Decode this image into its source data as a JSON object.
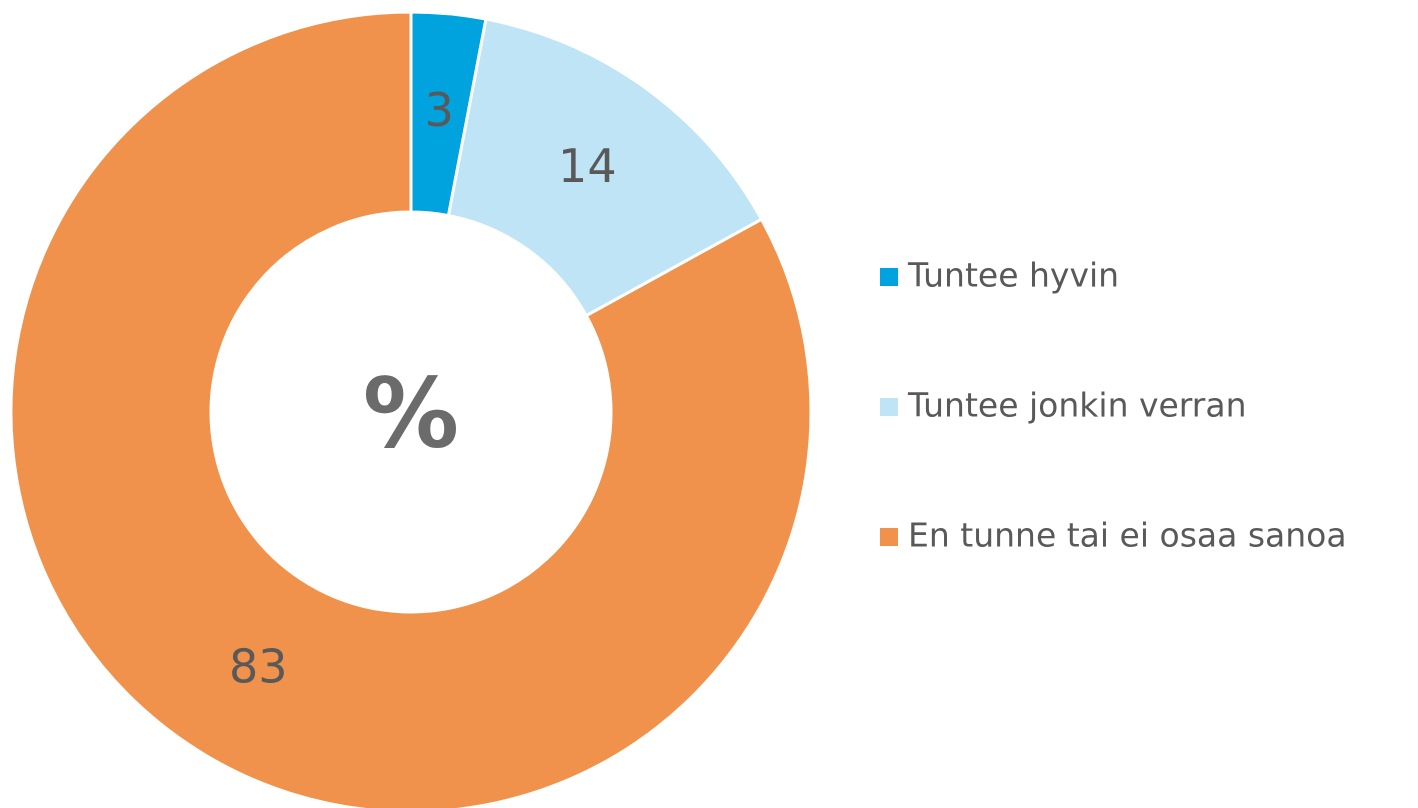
{
  "chart_data": {
    "type": "donut",
    "center_label": "%",
    "categories": [
      "Tuntee hyvin",
      "Tuntee jonkin verran",
      "En tunne tai ei osaa sanoa"
    ],
    "values": [
      3,
      14,
      83
    ],
    "colors": [
      "#00a3dd",
      "#bfe4f6",
      "#f0924b"
    ],
    "legend": "right"
  }
}
